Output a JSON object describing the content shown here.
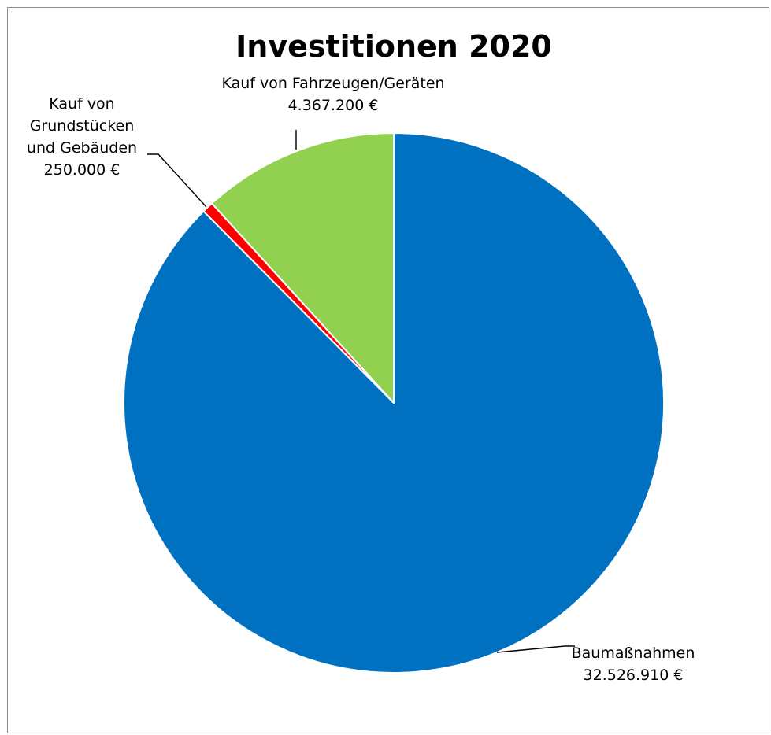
{
  "chart_data": {
    "type": "pie",
    "title": "Investitionen 2020",
    "start_angle_deg": 0,
    "direction": "clockwise",
    "slices": [
      {
        "name": "Baumaßnahmen",
        "value": 32526910,
        "value_label": "32.526.910 €",
        "color": "#0070c0"
      },
      {
        "name": "Kauf von Grundstücken und Gebäuden",
        "value": 250000,
        "value_label": "250.000 €",
        "color": "#ff0000",
        "label_lines": [
          "Kauf von",
          "Grundstücken",
          "und Gebäuden"
        ]
      },
      {
        "name": "Kauf von Fahrzeugen/Geräten",
        "value": 4367200,
        "value_label": "4.367.200 €",
        "color": "#92d050"
      }
    ],
    "legend": "none",
    "data_labels": "outside with leader lines"
  }
}
